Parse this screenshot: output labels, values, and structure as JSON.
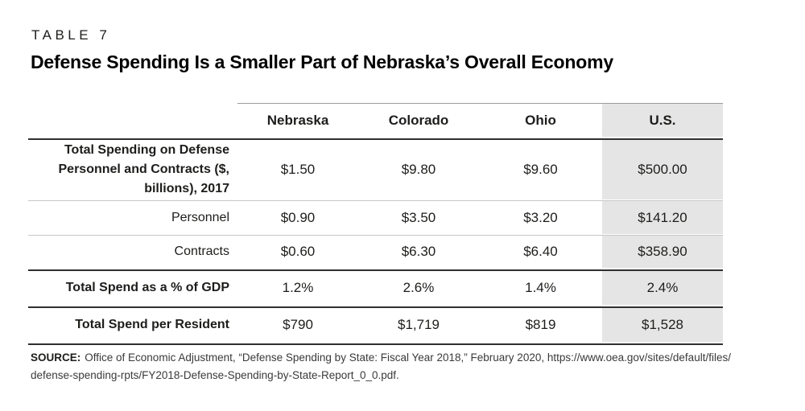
{
  "header": {
    "kicker": "TABLE 7",
    "title": "Defense Spending Is a Smaller Part of Nebraska’s Overall Economy"
  },
  "table": {
    "columns": [
      "Nebraska",
      "Colorado",
      "Ohio",
      "U.S."
    ],
    "highlight_column": "U.S.",
    "rows": [
      {
        "label": "Total Spending on Defense Personnel and Contracts ($, billions), 2017",
        "bold": true,
        "values": [
          "$1.50",
          "$9.80",
          "$9.60",
          "$500.00"
        ]
      },
      {
        "label": "Personnel",
        "bold": false,
        "values": [
          "$0.90",
          "$3.50",
          "$3.20",
          "$141.20"
        ]
      },
      {
        "label": "Contracts",
        "bold": false,
        "values": [
          "$0.60",
          "$6.30",
          "$6.40",
          "$358.90"
        ]
      },
      {
        "label": "Total Spend as a % of GDP",
        "bold": true,
        "values": [
          "1.2%",
          "2.6%",
          "1.4%",
          "2.4%"
        ]
      },
      {
        "label": "Total Spend per Resident",
        "bold": true,
        "values": [
          "$790",
          "$1,719",
          "$819",
          "$1,528"
        ]
      }
    ],
    "colors": {
      "highlight_bg": "#e5e5e5",
      "rule_dark": "#2f2f2f",
      "rule_light": "#c7c7c7",
      "rule_header_top": "#9b9b9b"
    }
  },
  "source": {
    "label": "SOURCE:",
    "line1": "Office of Economic Adjustment, “Defense Spending by State: Fiscal Year 2018,” February 2020, https://www.oea.gov/sites/default/files/",
    "line2": "defense-spending-rpts/FY2018-Defense-Spending-by-State-Report_0_0.pdf."
  }
}
